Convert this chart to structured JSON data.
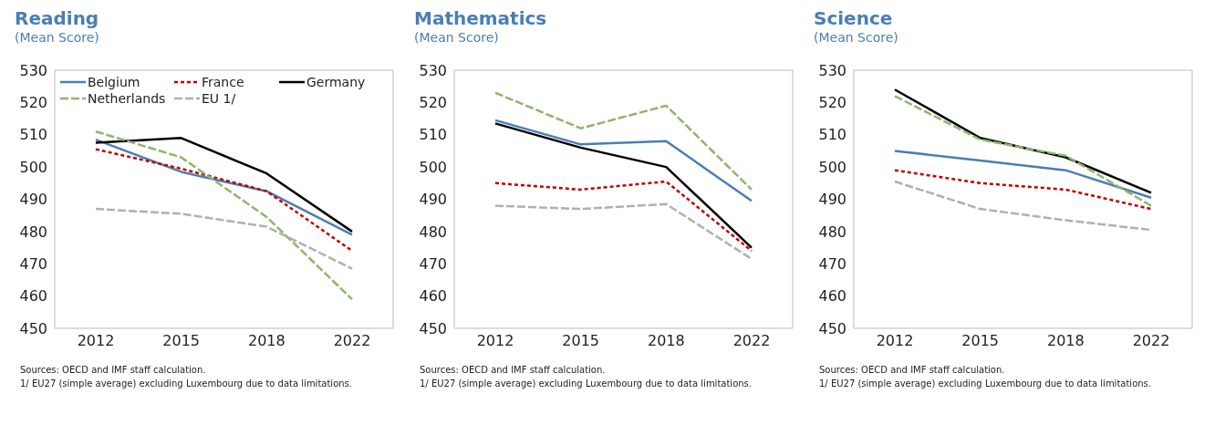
{
  "chart_data": [
    {
      "type": "line",
      "title": "Reading",
      "subtitle": "(Mean Score)",
      "categories": [
        "2012",
        "2015",
        "2018",
        "2022"
      ],
      "ylim": [
        450,
        530
      ],
      "yticks": [
        450,
        460,
        470,
        480,
        490,
        500,
        510,
        520,
        530
      ],
      "grid": false,
      "legend": "top",
      "marker": "none",
      "series": [
        {
          "name": "Belgium",
          "color": "#4a7eb5",
          "line_style": "solid",
          "values": [
            508.5,
            498.5,
            492.5,
            479
          ]
        },
        {
          "name": "France",
          "color": "#c00000",
          "line_style": "dotted",
          "values": [
            505.5,
            499.5,
            492.5,
            474
          ]
        },
        {
          "name": "Germany",
          "color": "#000000",
          "line_style": "solid",
          "values": [
            507.5,
            509,
            498,
            480
          ]
        },
        {
          "name": "Netherlands",
          "color": "#8fb56a",
          "line_style": "dashed",
          "values": [
            511,
            503,
            484.5,
            459
          ]
        },
        {
          "name": "EU 1/",
          "color": "#b0b0b0",
          "line_style": "dashed",
          "values": [
            487,
            485.5,
            481.5,
            468.5
          ]
        }
      ],
      "annotations": [
        "Sources: OECD and IMF staff calculation.",
        "1/ EU27 (simple average) excluding Luxembourg due to data limitations."
      ]
    },
    {
      "type": "line",
      "title": "Mathematics",
      "subtitle": "(Mean Score)",
      "categories": [
        "2012",
        "2015",
        "2018",
        "2022"
      ],
      "ylim": [
        450,
        530
      ],
      "yticks": [
        450,
        460,
        470,
        480,
        490,
        500,
        510,
        520,
        530
      ],
      "grid": false,
      "legend": false,
      "marker": "none",
      "series": [
        {
          "color": "#4a7eb5",
          "line_style": "solid",
          "values": [
            514.5,
            507,
            508,
            489.5
          ]
        },
        {
          "color": "#c00000",
          "line_style": "dotted",
          "values": [
            495,
            493,
            495.5,
            474
          ]
        },
        {
          "color": "#000000",
          "line_style": "solid",
          "values": [
            513.5,
            506,
            500,
            475
          ]
        },
        {
          "color": "#8fb56a",
          "line_style": "dashed",
          "values": [
            523,
            512,
            519,
            493
          ]
        },
        {
          "color": "#b0b0b0",
          "line_style": "dashed",
          "values": [
            488,
            487,
            488.5,
            471.5
          ]
        }
      ],
      "annotations": [
        "Sources: OECD and IMF staff calculation.",
        "1/ EU27 (simple average) excluding Luxembourg due to data limitations."
      ]
    },
    {
      "type": "line",
      "title": "Science",
      "subtitle": "(Mean Score)",
      "categories": [
        "2012",
        "2015",
        "2018",
        "2022"
      ],
      "ylim": [
        450,
        530
      ],
      "yticks": [
        450,
        460,
        470,
        480,
        490,
        500,
        510,
        520,
        530
      ],
      "grid": false,
      "legend": false,
      "marker": "none",
      "series": [
        {
          "color": "#4a7eb5",
          "line_style": "solid",
          "values": [
            505,
            502,
            499,
            490.5
          ]
        },
        {
          "color": "#c00000",
          "line_style": "dotted",
          "values": [
            499,
            495,
            493,
            487
          ]
        },
        {
          "color": "#000000",
          "line_style": "solid",
          "values": [
            524,
            509,
            503,
            492
          ]
        },
        {
          "color": "#8fb56a",
          "line_style": "dashed",
          "values": [
            522,
            508.5,
            503.5,
            488
          ]
        },
        {
          "color": "#b0b0b0",
          "line_style": "dashed",
          "values": [
            495.5,
            487,
            483.5,
            480.5
          ]
        }
      ],
      "annotations": [
        "Sources: OECD and IMF staff calculation.",
        "1/ EU27 (simple average) excluding Luxembourg due to data limitations."
      ]
    }
  ]
}
